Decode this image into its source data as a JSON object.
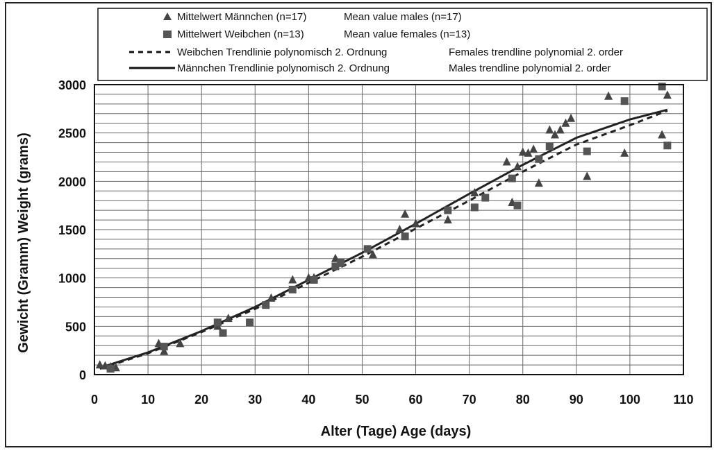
{
  "chart_data": {
    "type": "scatter",
    "xlabel": "Alter (Tage)   Age (days)",
    "ylabel": "Gewicht (Gramm)   Weight (grams)",
    "xlim": [
      0,
      110
    ],
    "ylim": [
      0,
      3000
    ],
    "x_ticks": [
      "0",
      "10",
      "20",
      "30",
      "40",
      "50",
      "60",
      "70",
      "80",
      "90",
      "100",
      "110"
    ],
    "y_ticks": [
      "0",
      "500",
      "1000",
      "1500",
      "2000",
      "2500",
      "3000"
    ],
    "grid": "on",
    "legend": {
      "placement": "top-left",
      "entries": [
        {
          "marker": "triangle",
          "label_de": "Mittelwert Männchen (n=17)",
          "label_en": "Mean value males (n=17)"
        },
        {
          "marker": "square",
          "label_de": "Mittelwert Weibchen (n=13)",
          "label_en": "Mean value females (n=13)"
        },
        {
          "marker": "dashed-line",
          "label_de": "Weibchen Trendlinie polynomisch 2. Ordnung",
          "label_en": "Females trendline polynomial 2. order"
        },
        {
          "marker": "solid-line",
          "label_de": "Männchen Trendlinie polynomisch 2. Ordnung",
          "label_en": "Males trendline polynomial 2. order"
        }
      ]
    },
    "series": [
      {
        "name": "Mittelwert Männchen (n=17)",
        "marker": "triangle",
        "color": "#444444",
        "points": [
          [
            1,
            100
          ],
          [
            2,
            90
          ],
          [
            3,
            80
          ],
          [
            4,
            70
          ],
          [
            12,
            320
          ],
          [
            13,
            240
          ],
          [
            16,
            320
          ],
          [
            23,
            500
          ],
          [
            25,
            580
          ],
          [
            33,
            790
          ],
          [
            37,
            980
          ],
          [
            40,
            1000
          ],
          [
            41,
            1000
          ],
          [
            45,
            1200
          ],
          [
            46,
            1150
          ],
          [
            52,
            1240
          ],
          [
            57,
            1500
          ],
          [
            58,
            1660
          ],
          [
            60,
            1560
          ],
          [
            66,
            1600
          ],
          [
            71,
            1880
          ],
          [
            77,
            2200
          ],
          [
            78,
            1780
          ],
          [
            79,
            2150
          ],
          [
            80,
            2300
          ],
          [
            81,
            2290
          ],
          [
            82,
            2330
          ],
          [
            83,
            1980
          ],
          [
            85,
            2530
          ],
          [
            86,
            2480
          ],
          [
            87,
            2530
          ],
          [
            88,
            2600
          ],
          [
            89,
            2650
          ],
          [
            92,
            2050
          ],
          [
            96,
            2880
          ],
          [
            99,
            2290
          ],
          [
            106,
            2480
          ],
          [
            107,
            2890
          ]
        ]
      },
      {
        "name": "Mittelwert Weibchen (n=13)",
        "marker": "square",
        "color": "#555555",
        "points": [
          [
            3,
            60
          ],
          [
            13,
            290
          ],
          [
            23,
            540
          ],
          [
            24,
            430
          ],
          [
            29,
            540
          ],
          [
            32,
            720
          ],
          [
            37,
            880
          ],
          [
            41,
            980
          ],
          [
            45,
            1120
          ],
          [
            46,
            1160
          ],
          [
            51,
            1300
          ],
          [
            58,
            1430
          ],
          [
            66,
            1700
          ],
          [
            71,
            1730
          ],
          [
            73,
            1830
          ],
          [
            78,
            2030
          ],
          [
            79,
            1750
          ],
          [
            83,
            2230
          ],
          [
            85,
            2360
          ],
          [
            92,
            2310
          ],
          [
            99,
            2830
          ],
          [
            106,
            2980
          ],
          [
            107,
            2370
          ]
        ]
      },
      {
        "name": "Weibchen Trendlinie polynomisch 2. Ordnung",
        "style": "dashed",
        "color": "#222222",
        "points": [
          [
            1,
            60
          ],
          [
            10,
            220
          ],
          [
            20,
            440
          ],
          [
            30,
            680
          ],
          [
            40,
            950
          ],
          [
            50,
            1220
          ],
          [
            60,
            1510
          ],
          [
            70,
            1800
          ],
          [
            80,
            2100
          ],
          [
            90,
            2380
          ],
          [
            100,
            2580
          ],
          [
            107,
            2730
          ]
        ]
      },
      {
        "name": "Männchen Trendlinie polynomisch 2. Ordnung",
        "style": "solid",
        "color": "#222222",
        "points": [
          [
            1,
            70
          ],
          [
            10,
            230
          ],
          [
            20,
            450
          ],
          [
            30,
            700
          ],
          [
            40,
            980
          ],
          [
            50,
            1260
          ],
          [
            60,
            1560
          ],
          [
            70,
            1870
          ],
          [
            80,
            2170
          ],
          [
            90,
            2450
          ],
          [
            100,
            2640
          ],
          [
            107,
            2740
          ]
        ]
      }
    ]
  }
}
